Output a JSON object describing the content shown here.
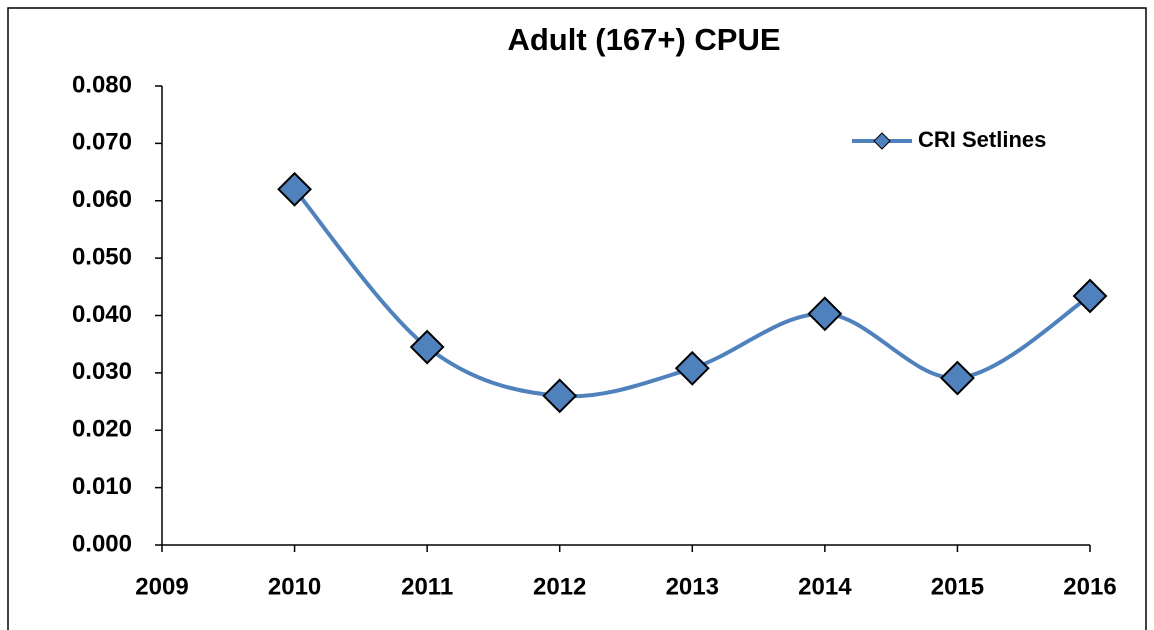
{
  "chart_data": {
    "type": "line",
    "title": "Adult (167+) CPUE",
    "x": [
      2010,
      2011,
      2012,
      2013,
      2014,
      2015,
      2016
    ],
    "series": [
      {
        "name": "CRI Setlines",
        "color": "#4f81bd",
        "values": [
          0.062,
          0.0345,
          0.026,
          0.0308,
          0.0403,
          0.0291,
          0.0434
        ]
      }
    ],
    "xlim": [
      2009,
      2016
    ],
    "xticks": [
      2009,
      2010,
      2011,
      2012,
      2013,
      2014,
      2015,
      2016
    ],
    "ylim": [
      0,
      0.08
    ],
    "yticks": [
      {
        "value": 0,
        "label": "0.000"
      },
      {
        "value": 0.01,
        "label": "0.010"
      },
      {
        "value": 0.02,
        "label": "0.020"
      },
      {
        "value": 0.03,
        "label": "0.030"
      },
      {
        "value": 0.04,
        "label": "0.040"
      },
      {
        "value": 0.05,
        "label": "0.050"
      },
      {
        "value": 0.06,
        "label": "0.060"
      },
      {
        "value": 0.07,
        "label": "0.070"
      },
      {
        "value": 0.08,
        "label": "0.080"
      }
    ],
    "smooth": true,
    "legend": "top-right"
  }
}
